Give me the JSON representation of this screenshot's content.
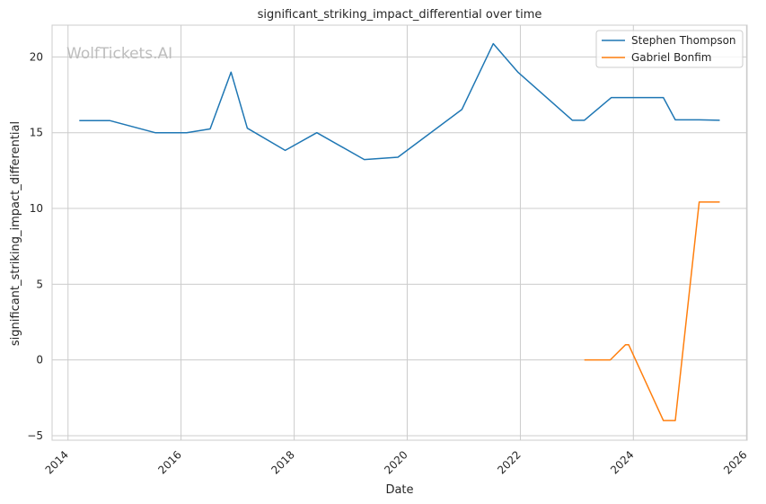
{
  "chart_data": {
    "type": "line",
    "title": "significant_striking_impact_differential over time",
    "xlabel": "Date",
    "ylabel": "significant_striking_impact_differential",
    "watermark": "WolfTickets.AI",
    "xlim": [
      "2013-09-20",
      "2026-01-05"
    ],
    "ylim": [
      -5.3,
      22.1
    ],
    "x_ticks": [
      "2014",
      "2016",
      "2018",
      "2020",
      "2022",
      "2024",
      "2026"
    ],
    "y_ticks": [
      "20",
      "15",
      "10",
      "5",
      "0",
      "−5"
    ],
    "grid": true,
    "legend_position": "top-right",
    "series": [
      {
        "name": "Stephen Thompson",
        "color": "#1f77b4",
        "x": [
          "2014-03-15",
          "2014-09-27",
          "2015-07-18",
          "2016-02-06",
          "2016-07-07",
          "2016-11-19",
          "2017-03-04",
          "2017-11-04",
          "2018-05-27",
          "2019-03-30",
          "2019-11-02",
          "2020-12-19",
          "2021-07-10",
          "2021-12-18",
          "2022-12-03",
          "2023-02-18",
          "2023-08-12",
          "2024-02-10",
          "2024-07-13",
          "2024-09-28",
          "2025-03-01",
          "2025-07-12"
        ],
        "values": [
          15.8,
          15.8,
          15.0,
          15.0,
          15.25,
          19.0,
          15.3,
          13.83,
          15.0,
          13.23,
          13.38,
          16.53,
          20.88,
          18.98,
          15.82,
          15.82,
          17.32,
          17.32,
          17.32,
          15.85,
          15.85,
          15.82
        ]
      },
      {
        "name": "Gabriel Bonfim",
        "color": "#ff7f0e",
        "x": [
          "2023-02-18",
          "2023-08-05",
          "2023-11-11",
          "2023-12-02",
          "2024-07-13",
          "2024-09-28",
          "2025-03-01",
          "2025-07-12"
        ],
        "values": [
          0.0,
          0.0,
          1.0,
          1.0,
          -4.0,
          -4.0,
          10.42,
          10.42
        ]
      }
    ]
  }
}
